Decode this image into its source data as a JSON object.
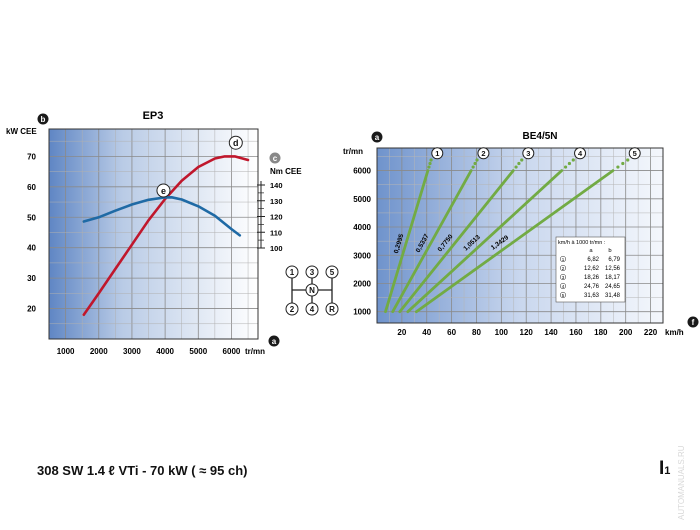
{
  "footer": {
    "title": "308 SW 1.4 ℓ VTi - 70 kW ( ≈ 95 ch)",
    "page_letter": "I",
    "page_number": "1",
    "watermark": "AUTOMANUALS.RU"
  },
  "chart_data": [
    {
      "type": "line",
      "title": "EP3",
      "xlabel": "tr/mn",
      "ylabel": "kW CEE",
      "y2label": "Nm CEE",
      "axis_markers": {
        "x": "a",
        "y": "b",
        "y2": "c"
      },
      "xlim": [
        500,
        6800
      ],
      "ylim": [
        10,
        79
      ],
      "y2lim": [
        100,
        140
      ],
      "x_ticks": [
        1000,
        2000,
        3000,
        4000,
        5000,
        6000
      ],
      "y_ticks": [
        20,
        30,
        40,
        50,
        60,
        70
      ],
      "y2_ticks": [
        100,
        110,
        120,
        130,
        140
      ],
      "grid": true,
      "series": [
        {
          "name": "d",
          "axis": "left",
          "color": "#c0172c",
          "points": [
            [
              1550,
              18
            ],
            [
              2000,
              25
            ],
            [
              2500,
              33
            ],
            [
              3000,
              41
            ],
            [
              3500,
              49
            ],
            [
              4000,
              56
            ],
            [
              4500,
              62
            ],
            [
              5000,
              66.5
            ],
            [
              5500,
              69.3
            ],
            [
              5800,
              70
            ],
            [
              6100,
              70
            ],
            [
              6500,
              68.8
            ]
          ],
          "marker_at": 5950
        },
        {
          "name": "e",
          "axis": "right",
          "color": "#1f6aa5",
          "points": [
            [
              1550,
              116.8
            ],
            [
              2000,
              119.5
            ],
            [
              2500,
              123.7
            ],
            [
              3000,
              127.6
            ],
            [
              3500,
              130.6
            ],
            [
              4000,
              132.1
            ],
            [
              4200,
              132.2
            ],
            [
              4500,
              130.8
            ],
            [
              5000,
              126.5
            ],
            [
              5500,
              120.5
            ],
            [
              6000,
              112
            ],
            [
              6250,
              108
            ]
          ],
          "marker_at": 3950
        }
      ],
      "gear_diagram": {
        "gears": [
          "1",
          "3",
          "5",
          "2",
          "4",
          "R"
        ],
        "neutral": "N"
      }
    },
    {
      "type": "line",
      "title": "BE4/5N",
      "xlabel": "km/h",
      "ylabel": "tr/mn",
      "axis_markers": {
        "x": "f",
        "y": "a"
      },
      "xlim": [
        0,
        230
      ],
      "ylim": [
        600,
        6800
      ],
      "x_ticks": [
        20,
        40,
        60,
        80,
        100,
        120,
        140,
        160,
        180,
        200,
        220
      ],
      "y_ticks": [
        1000,
        2000,
        3000,
        4000,
        5000,
        6000
      ],
      "grid": true,
      "series": [
        {
          "name": "1",
          "ratio": "0,2995",
          "points": [
            [
              6.82,
              1000
            ],
            [
              40.92,
              6000
            ]
          ],
          "dots": [
            [
              40.92,
              6000
            ],
            [
              43.65,
              6400
            ]
          ]
        },
        {
          "name": "2",
          "ratio": "0,5337",
          "points": [
            [
              12.62,
              1000
            ],
            [
              75.72,
              6000
            ]
          ],
          "dots": [
            [
              75.72,
              6000
            ],
            [
              80.77,
              6400
            ]
          ]
        },
        {
          "name": "3",
          "ratio": "0,7750",
          "points": [
            [
              18.26,
              1000
            ],
            [
              109.56,
              6000
            ]
          ],
          "dots": [
            [
              109.56,
              6000
            ],
            [
              116.86,
              6400
            ]
          ]
        },
        {
          "name": "4",
          "ratio": "1,0513",
          "points": [
            [
              24.76,
              1000
            ],
            [
              148.56,
              6000
            ]
          ],
          "dots": [
            [
              148.56,
              6000
            ],
            [
              158.46,
              6400
            ]
          ]
        },
        {
          "name": "5",
          "ratio": "1,3429",
          "points": [
            [
              31.63,
              1000
            ],
            [
              189.78,
              6000
            ]
          ],
          "dots": [
            [
              189.78,
              6000
            ],
            [
              202.43,
              6400
            ]
          ]
        }
      ],
      "speed_table": {
        "title": "km/h à 1000 tr/mn :",
        "headers": [
          "a",
          "b"
        ],
        "rows": [
          {
            "gear": "1",
            "a": "6,82",
            "b": "6,79"
          },
          {
            "gear": "2",
            "a": "12,62",
            "b": "12,56"
          },
          {
            "gear": "3",
            "a": "18,26",
            "b": "18,17"
          },
          {
            "gear": "4",
            "a": "24,76",
            "b": "24,65"
          },
          {
            "gear": "5",
            "a": "31,63",
            "b": "31,48"
          }
        ]
      }
    }
  ]
}
